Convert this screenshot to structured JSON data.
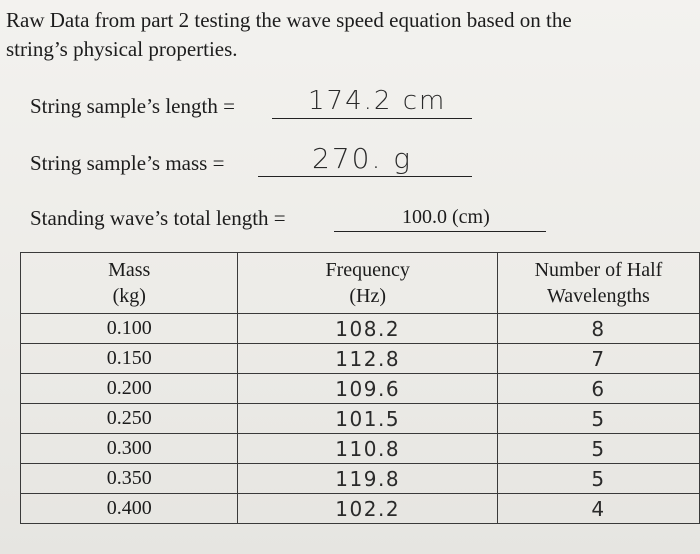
{
  "intro": {
    "line1": "Raw Data from part 2 testing the wave speed equation based on the",
    "line2": "string’s physical properties."
  },
  "fields": {
    "length": {
      "label": "String sample’s length =",
      "value": "174.2  cm"
    },
    "mass": {
      "label": "String sample’s mass =",
      "value": "270. g"
    },
    "standing": {
      "label": "Standing wave’s total length =",
      "value": "100.0 (cm)"
    }
  },
  "table": {
    "headers": {
      "mass": [
        "Mass",
        "(kg)"
      ],
      "frequency": [
        "Frequency",
        "(Hz)"
      ],
      "half": [
        "Number of Half",
        "Wavelengths"
      ]
    },
    "rows": [
      {
        "mass": "0.100",
        "frequency": "108.2",
        "half": "8"
      },
      {
        "mass": "0.150",
        "frequency": "112.8",
        "half": "7"
      },
      {
        "mass": "0.200",
        "frequency": "109.6",
        "half": "6"
      },
      {
        "mass": "0.250",
        "frequency": "101.5",
        "half": "5"
      },
      {
        "mass": "0.300",
        "frequency": "110.8",
        "half": "5"
      },
      {
        "mass": "0.350",
        "frequency": "119.8",
        "half": "5"
      },
      {
        "mass": "0.400",
        "frequency": "102.2",
        "half": "4"
      }
    ]
  }
}
